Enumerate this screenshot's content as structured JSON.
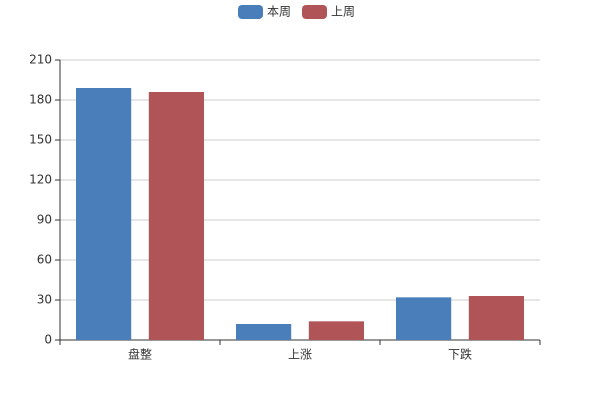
{
  "chart_data": {
    "type": "bar",
    "categories": [
      "盘整",
      "上涨",
      "下跌"
    ],
    "series": [
      {
        "name": "本周",
        "color": "#4a7ebb",
        "values": [
          189,
          12,
          32
        ]
      },
      {
        "name": "上周",
        "color": "#b05458",
        "values": [
          186,
          14,
          33
        ]
      }
    ],
    "ylim": [
      0,
      210
    ],
    "yticks": [
      0,
      30,
      60,
      90,
      120,
      150,
      180,
      210
    ],
    "grid": true,
    "legend": "top"
  }
}
